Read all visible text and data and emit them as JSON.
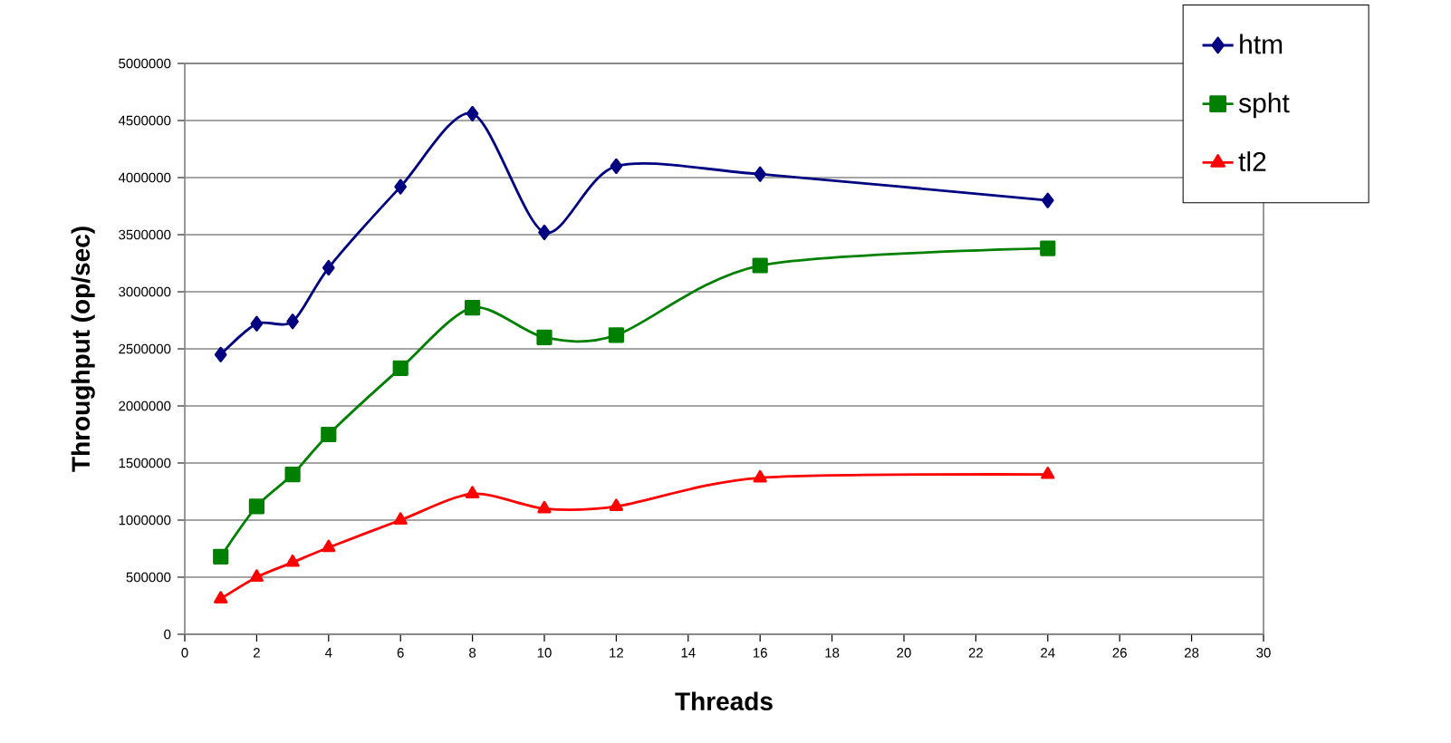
{
  "chart_data": {
    "type": "line",
    "xlabel": "Threads",
    "ylabel": "Throughput (op/sec)",
    "x": [
      1,
      2,
      3,
      4,
      6,
      8,
      10,
      12,
      16,
      24
    ],
    "series": [
      {
        "name": "htm",
        "color": "#000080",
        "marker": "diamond",
        "values": [
          2450000,
          2720000,
          2740000,
          3210000,
          3920000,
          4560000,
          3520000,
          4100000,
          4030000,
          3800000
        ]
      },
      {
        "name": "spht",
        "color": "#008000",
        "marker": "square",
        "values": [
          680000,
          1120000,
          1400000,
          1750000,
          2330000,
          2860000,
          2600000,
          2620000,
          3230000,
          3380000
        ]
      },
      {
        "name": "tl2",
        "color": "#ff0000",
        "marker": "triangle",
        "values": [
          310000,
          500000,
          630000,
          760000,
          1000000,
          1230000,
          1100000,
          1120000,
          1370000,
          1400000
        ]
      }
    ],
    "xlim": [
      0,
      30
    ],
    "xticks": [
      0,
      2,
      4,
      6,
      8,
      10,
      12,
      14,
      16,
      18,
      20,
      22,
      24,
      26,
      28,
      30
    ],
    "ylim": [
      0,
      5000000
    ],
    "yticks": [
      0,
      500000,
      1000000,
      1500000,
      2000000,
      2500000,
      3000000,
      3500000,
      4000000,
      4500000,
      5000000
    ],
    "grid": "y",
    "legend": "top right",
    "line_style": "solid"
  }
}
